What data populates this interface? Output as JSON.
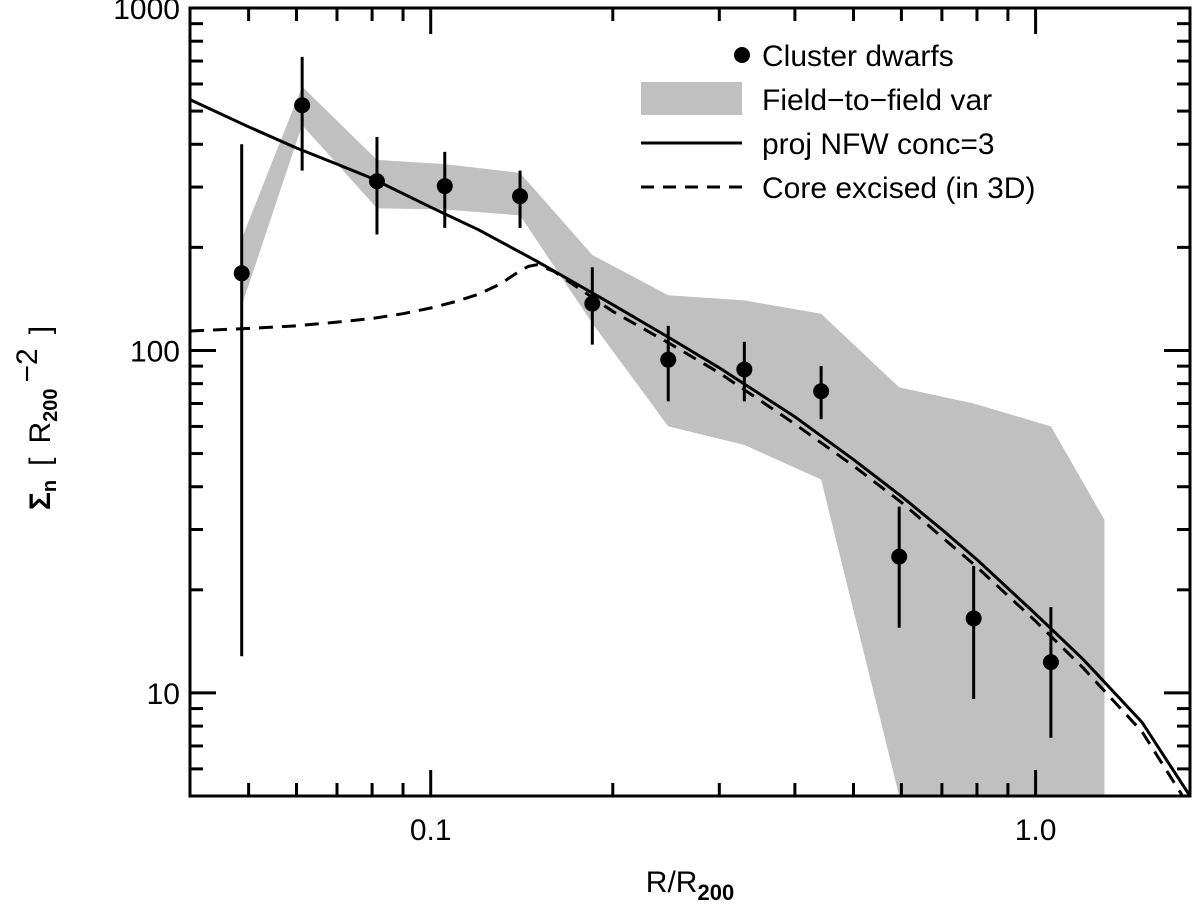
{
  "chart_data": {
    "type": "scatter",
    "x_scale": "log",
    "y_scale": "log",
    "xlim": [
      0.04,
      1.8
    ],
    "ylim": [
      5,
      1000
    ],
    "x_ticks": [
      {
        "value": 0.1,
        "label": "0.1"
      },
      {
        "value": 1.0,
        "label": "1.0"
      }
    ],
    "y_ticks": [
      {
        "value": 10,
        "label": "10"
      },
      {
        "value": 100,
        "label": "100"
      },
      {
        "value": 1000,
        "label": "1000"
      }
    ],
    "xlabel": {
      "main": "R/R",
      "sub": "200"
    },
    "ylabel": {
      "main": "Σ",
      "sub_n": "n",
      "bracket_open": "[",
      "unit": "R",
      "unit_sub": "200",
      "unit_sup": "−2",
      "bracket_close": "]"
    },
    "legend": {
      "position": "top-right",
      "entries": [
        {
          "key": "points",
          "label": "Cluster dwarfs"
        },
        {
          "key": "band",
          "label": "Field−to−field var"
        },
        {
          "key": "solid",
          "label": "proj NFW conc=3"
        },
        {
          "key": "dashed",
          "label": "Core excised (in 3D)"
        }
      ]
    },
    "series": [
      {
        "name": "Cluster dwarfs",
        "kind": "points_with_errorbars",
        "x": [
          0.0487,
          0.0613,
          0.0815,
          0.1055,
          0.1405,
          0.185,
          0.247,
          0.33,
          0.442,
          0.595,
          0.79,
          1.06
        ],
        "y": [
          168,
          520,
          312,
          302,
          282,
          137,
          94,
          88,
          76,
          25,
          16.5,
          12.3
        ],
        "y_low": [
          12.8,
          335,
          218,
          228,
          228,
          104,
          71,
          71,
          63,
          15.5,
          9.6,
          7.4
        ],
        "y_high": [
          400,
          720,
          420,
          380,
          335,
          175,
          118,
          106,
          90,
          35,
          23.5,
          17.8
        ]
      },
      {
        "name": "Field−to−field var",
        "kind": "band",
        "x": [
          0.0487,
          0.0613,
          0.0815,
          0.1055,
          0.1405,
          0.185,
          0.247,
          0.33,
          0.442,
          0.595,
          0.79,
          1.06,
          1.3
        ],
        "y_low": [
          135,
          455,
          260,
          258,
          248,
          120,
          60,
          53,
          42,
          5,
          5,
          5,
          5
        ],
        "y_high": [
          212,
          590,
          360,
          350,
          330,
          190,
          145,
          140,
          128,
          78,
          70,
          60,
          32
        ]
      },
      {
        "name": "proj NFW conc=3",
        "kind": "line",
        "style": "solid",
        "x": [
          0.04,
          0.05,
          0.06,
          0.07,
          0.08,
          0.1,
          0.12,
          0.15,
          0.2,
          0.25,
          0.3,
          0.4,
          0.5,
          0.6,
          0.7,
          0.8,
          1.0,
          1.2,
          1.5,
          1.8
        ],
        "y": [
          540,
          450,
          390,
          350,
          318,
          262,
          225,
          182,
          136,
          108,
          89,
          64,
          48,
          37.5,
          30,
          24.5,
          17,
          12.5,
          8.2,
          5
        ]
      },
      {
        "name": "Core excised (in 3D)",
        "kind": "line",
        "style": "dashed",
        "x": [
          0.04,
          0.05,
          0.06,
          0.07,
          0.08,
          0.09,
          0.1,
          0.11,
          0.12,
          0.13,
          0.14,
          0.145,
          0.15,
          0.16,
          0.2,
          0.25,
          0.3,
          0.4,
          0.5,
          0.6,
          0.8,
          1.0,
          1.2,
          1.5,
          1.75
        ],
        "y": [
          114,
          116,
          118,
          121,
          124,
          128,
          133,
          139,
          146,
          156,
          170,
          176,
          178,
          170,
          130,
          104,
          86,
          61,
          46,
          36,
          23.3,
          16.2,
          11.8,
          7.7,
          5
        ]
      }
    ]
  }
}
